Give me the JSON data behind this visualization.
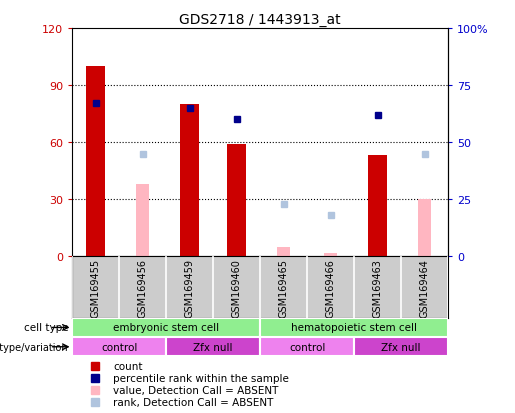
{
  "title": "GDS2718 / 1443913_at",
  "samples": [
    "GSM169455",
    "GSM169456",
    "GSM169459",
    "GSM169460",
    "GSM169465",
    "GSM169466",
    "GSM169463",
    "GSM169464"
  ],
  "count": [
    100,
    null,
    80,
    59,
    null,
    null,
    53,
    null
  ],
  "percentile_rank": [
    67,
    null,
    65,
    60,
    null,
    null,
    62,
    null
  ],
  "value_absent": [
    null,
    38,
    null,
    null,
    5,
    2,
    null,
    30
  ],
  "rank_absent": [
    null,
    45,
    null,
    null,
    23,
    18,
    null,
    45
  ],
  "ylim_left": [
    0,
    120
  ],
  "ylim_right": [
    0,
    100
  ],
  "yticks_left": [
    0,
    30,
    60,
    90,
    120
  ],
  "yticks_right": [
    0,
    25,
    50,
    75,
    100
  ],
  "yticklabels_left": [
    "0",
    "30",
    "60",
    "90",
    "120"
  ],
  "yticklabels_right": [
    "0",
    "25",
    "50",
    "75",
    "100%"
  ],
  "cell_type_groups": [
    {
      "label": "embryonic stem cell",
      "start": 0,
      "end": 3,
      "color": "#90EE90"
    },
    {
      "label": "hematopoietic stem cell",
      "start": 4,
      "end": 7,
      "color": "#90EE90"
    }
  ],
  "genotype_groups": [
    {
      "label": "control",
      "start": 0,
      "end": 1,
      "color": "#EE82EE"
    },
    {
      "label": "Zfx null",
      "start": 2,
      "end": 3,
      "color": "#CC44CC"
    },
    {
      "label": "control",
      "start": 4,
      "end": 5,
      "color": "#EE82EE"
    },
    {
      "label": "Zfx null",
      "start": 6,
      "end": 7,
      "color": "#CC44CC"
    }
  ],
  "bar_width": 0.4,
  "color_count": "#CC0000",
  "color_percentile": "#00008B",
  "color_value_absent": "#FFB6C1",
  "color_rank_absent": "#B0C4DE",
  "left_tick_color": "#CC0000",
  "right_tick_color": "#0000CC",
  "bg_color": "#CCCCCC",
  "plot_bg": "white",
  "legend_items": [
    {
      "label": "count",
      "color": "#CC0000"
    },
    {
      "label": "percentile rank within the sample",
      "color": "#00008B"
    },
    {
      "label": "value, Detection Call = ABSENT",
      "color": "#FFB6C1"
    },
    {
      "label": "rank, Detection Call = ABSENT",
      "color": "#B0C4DE"
    }
  ],
  "cell_type_label": "cell type",
  "genotype_label": "genotype/variation"
}
